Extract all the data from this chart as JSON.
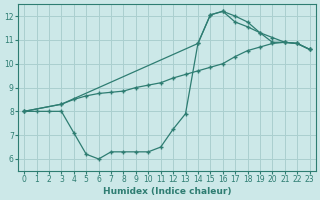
{
  "xlabel": "Humidex (Indice chaleur)",
  "bg_color": "#cce8e8",
  "grid_color": "#aacfcf",
  "line_color": "#2e7d72",
  "xlim": [
    -0.5,
    23.5
  ],
  "ylim": [
    5.5,
    12.5
  ],
  "xticks": [
    0,
    1,
    2,
    3,
    4,
    5,
    6,
    7,
    8,
    9,
    10,
    11,
    12,
    13,
    14,
    15,
    16,
    17,
    18,
    19,
    20,
    21,
    22,
    23
  ],
  "yticks": [
    6,
    7,
    8,
    9,
    10,
    11,
    12
  ],
  "line1_x": [
    0,
    1,
    2,
    3,
    4,
    5,
    6,
    7,
    8,
    9,
    10,
    11,
    12,
    13,
    14,
    15,
    16,
    17,
    18,
    19,
    20,
    21,
    22,
    23
  ],
  "line1_y": [
    8,
    8,
    8,
    8,
    7.1,
    6.2,
    6.0,
    6.3,
    6.3,
    6.3,
    6.3,
    6.5,
    7.25,
    7.9,
    10.85,
    12.05,
    12.2,
    12.0,
    11.75,
    11.3,
    10.9,
    10.9,
    10.85,
    10.6
  ],
  "line2_x": [
    0,
    3,
    4,
    5,
    6,
    7,
    8,
    9,
    10,
    11,
    12,
    13,
    14,
    15,
    16,
    17,
    18,
    19,
    20,
    21,
    22,
    23
  ],
  "line2_y": [
    8,
    8.3,
    8.5,
    8.65,
    8.75,
    8.8,
    8.85,
    9.0,
    9.1,
    9.2,
    9.4,
    9.55,
    9.7,
    9.85,
    10.0,
    10.3,
    10.55,
    10.7,
    10.85,
    10.9,
    10.85,
    10.6
  ],
  "line3_x": [
    0,
    3,
    14,
    15,
    16,
    17,
    18,
    19,
    20,
    21,
    22,
    23
  ],
  "line3_y": [
    8,
    8.3,
    10.85,
    12.05,
    12.2,
    11.75,
    11.55,
    11.3,
    11.1,
    10.9,
    10.85,
    10.6
  ]
}
